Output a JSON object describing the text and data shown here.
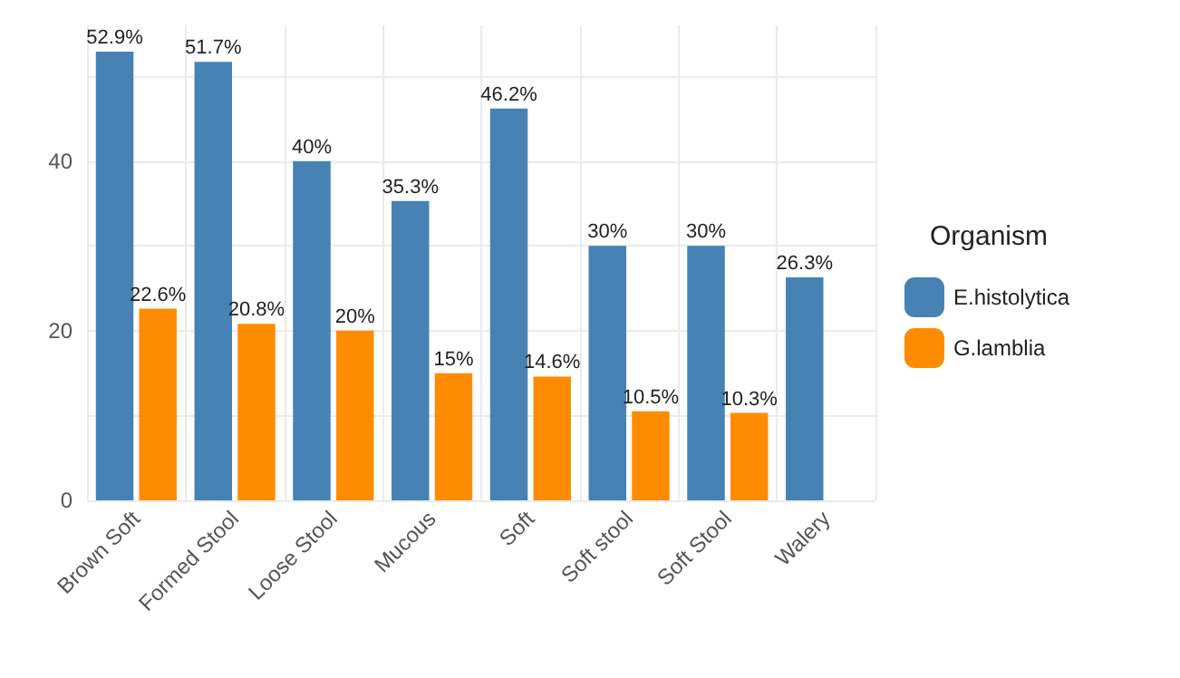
{
  "chart_data": {
    "type": "bar",
    "categories": [
      "Brown Soft",
      "Formed Stool",
      "Loose Stool",
      "Mucous",
      "Soft",
      "Soft stool",
      "Soft Stool",
      "Walery"
    ],
    "series": [
      {
        "name": "E.histolytica",
        "color": "#4682b4",
        "values": [
          52.9,
          51.7,
          40,
          35.3,
          46.2,
          30,
          30,
          26.3
        ],
        "value_labels": [
          "52.9%",
          "51.7%",
          "40%",
          "35.3%",
          "46.2%",
          "30%",
          "30%",
          "26.3%"
        ]
      },
      {
        "name": "G.lamblia",
        "color": "#ff8c00",
        "values": [
          22.6,
          20.8,
          20,
          15,
          14.6,
          10.5,
          10.3,
          null
        ],
        "value_labels": [
          "22.6%",
          "20.8%",
          "20%",
          "15%",
          "14.6%",
          "10.5%",
          "10.3%",
          null
        ]
      }
    ],
    "legend_title": "Organism",
    "legend": "right",
    "ylim": [
      0,
      56
    ],
    "yticks": [
      0,
      {
        "value": 10,
        "label": null
      },
      20,
      {
        "value": 30,
        "label": null
      },
      40,
      {
        "value": 50,
        "label": null
      }
    ],
    "grid": true
  }
}
